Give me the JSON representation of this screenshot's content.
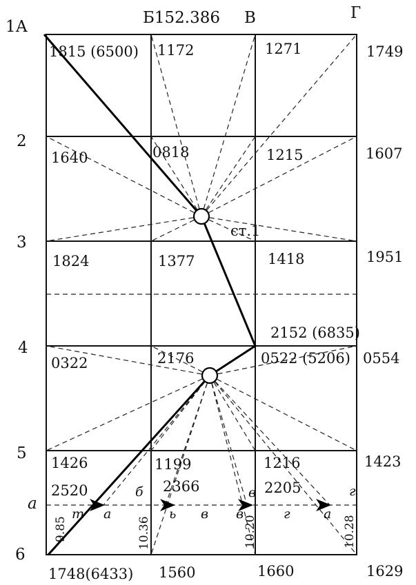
{
  "rows": {
    "r1": "1А",
    "r2": "2",
    "r3": "3",
    "r4": "4",
    "r5": "5",
    "r6": "6"
  },
  "columns": {
    "b": "Б152.386",
    "v": "В",
    "g": "Г"
  },
  "station": "ст.1",
  "points": {
    "p1a": "1815 (6500)",
    "p1b": "1172",
    "p1v": "1271",
    "p1g": "1749",
    "p2a": "1640",
    "p2b": "0818",
    "p2v": "1215",
    "p2g": "1607",
    "p3a": "1824",
    "p3b": "1377",
    "p3v": "1418",
    "p3g": "1951",
    "p4v_top": "2152 (6835)",
    "p4a": "0322",
    "p4b": "2176",
    "p4v": "0522 (5206)",
    "p4g": "0554",
    "p5a": "1426",
    "p5b": "1199",
    "p5v": "1216",
    "p5g": "1423",
    "p6a": "1748(6433)",
    "p6b": "1560",
    "p6v": "1660",
    "p6g": "1629"
  },
  "plus_points": {
    "a": "2520",
    "b": "2366",
    "v": "2205"
  },
  "distances": {
    "d1": "9.85",
    "d2": "10.36",
    "d3": "10.20",
    "d4": "10.28"
  },
  "letters": {
    "row_a": "а",
    "b_top": "б",
    "v_top": "в",
    "g_top": "г",
    "t": "т",
    "a_mid": "а",
    "b_mid": "ь",
    "v_mid1": "в",
    "v_mid2": "в",
    "g_mid": "г",
    "a_right": "а"
  }
}
